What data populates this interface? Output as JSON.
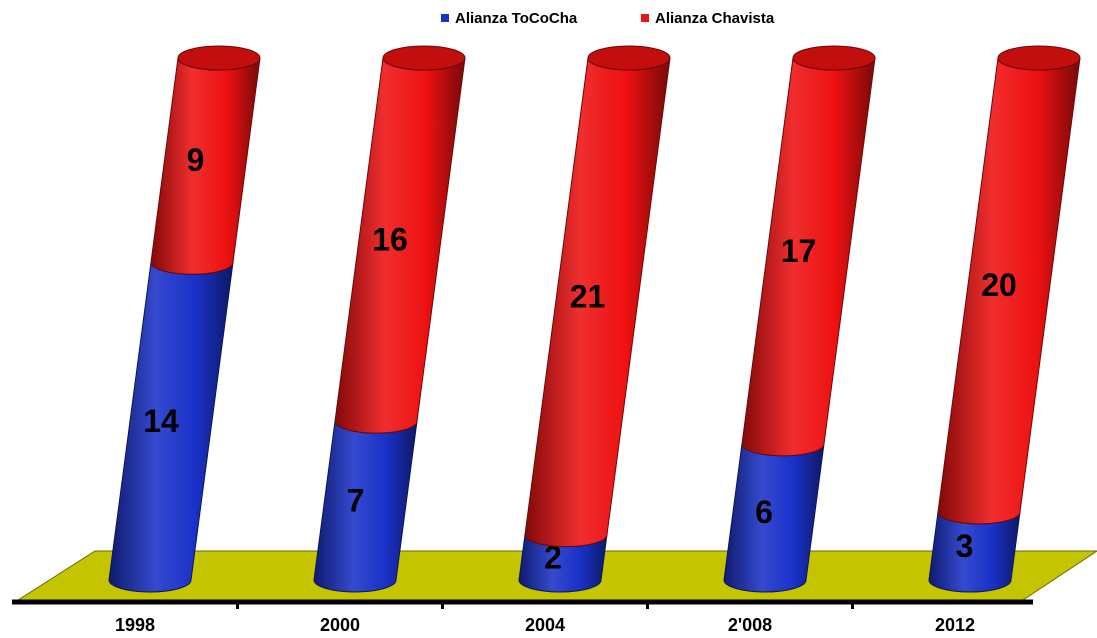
{
  "chart_data": {
    "type": "bar",
    "stacked": true,
    "style": "3d-cylinder",
    "categories": [
      "1998",
      "2000",
      "2004",
      "2'008",
      "2012"
    ],
    "series": [
      {
        "name": "Alianza ToCoCha",
        "color": "#1a31c8",
        "values": [
          14,
          7,
          2,
          6,
          3
        ]
      },
      {
        "name": "Alianza Chavista",
        "color": "#ee1111",
        "values": [
          9,
          16,
          21,
          17,
          20
        ]
      }
    ],
    "ylim": [
      0,
      23
    ],
    "legend_position": "top",
    "floor_color": "#c4c400",
    "grid": false
  }
}
